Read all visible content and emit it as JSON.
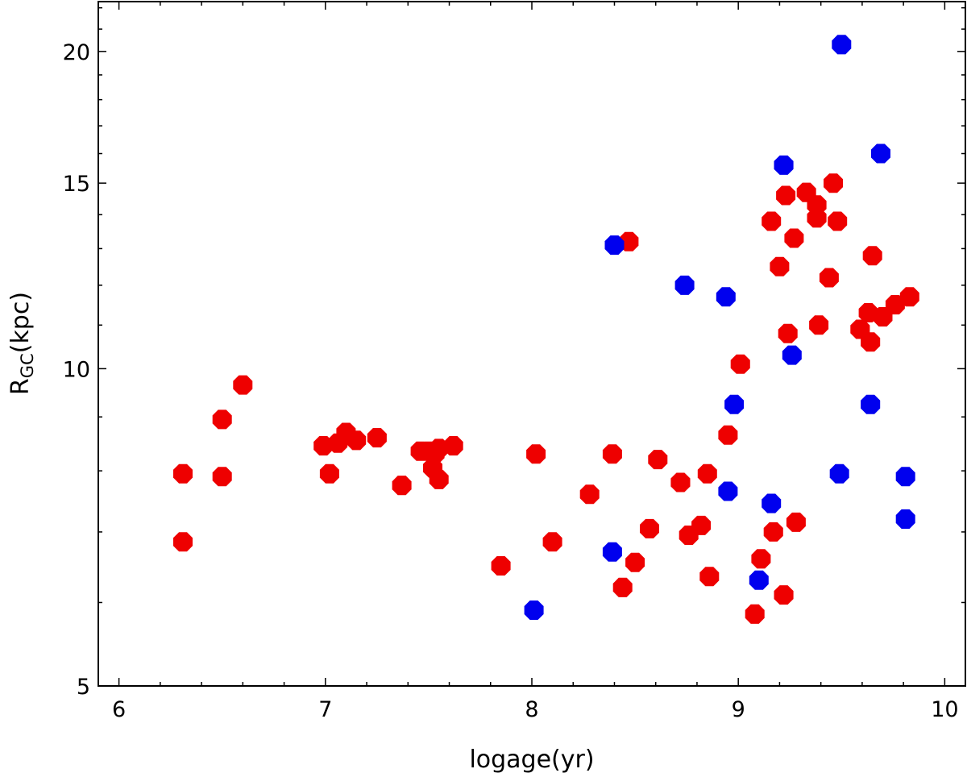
{
  "chart_data": {
    "type": "scatter",
    "xlabel": "logage(yr)",
    "ylabel": "R",
    "ylabel_subscript": "GC",
    "ylabel_suffix": "(kpc)",
    "xlim": [
      5.9,
      10.1
    ],
    "ylim": [
      5,
      22.3
    ],
    "yscale": "log",
    "grid": false,
    "xticks": [
      6,
      7,
      8,
      9,
      10
    ],
    "xtick_labels": [
      "6",
      "7",
      "8",
      "9",
      "10"
    ],
    "yticks": [
      5,
      10,
      15,
      20
    ],
    "ytick_labels": [
      "5",
      "10",
      "15",
      "20"
    ],
    "series": [
      {
        "name": "red",
        "color": "#ee0000",
        "points": [
          [
            6.31,
            7.95
          ],
          [
            6.31,
            6.85
          ],
          [
            6.5,
            7.9
          ],
          [
            6.5,
            8.95
          ],
          [
            6.6,
            9.65
          ],
          [
            6.99,
            8.45
          ],
          [
            7.02,
            7.95
          ],
          [
            7.06,
            8.5
          ],
          [
            7.1,
            8.7
          ],
          [
            7.15,
            8.55
          ],
          [
            7.25,
            8.6
          ],
          [
            7.37,
            7.75
          ],
          [
            7.46,
            8.35
          ],
          [
            7.5,
            8.35
          ],
          [
            7.53,
            8.3
          ],
          [
            7.55,
            8.4
          ],
          [
            7.52,
            8.05
          ],
          [
            7.55,
            7.85
          ],
          [
            7.62,
            8.45
          ],
          [
            7.85,
            6.5
          ],
          [
            8.02,
            8.3
          ],
          [
            8.1,
            6.85
          ],
          [
            8.28,
            7.6
          ],
          [
            8.39,
            8.3
          ],
          [
            8.44,
            6.2
          ],
          [
            8.47,
            13.2
          ],
          [
            8.5,
            6.55
          ],
          [
            8.57,
            7.05
          ],
          [
            8.61,
            8.2
          ],
          [
            8.72,
            7.8
          ],
          [
            8.76,
            6.95
          ],
          [
            8.82,
            7.1
          ],
          [
            8.85,
            7.95
          ],
          [
            8.86,
            6.35
          ],
          [
            8.95,
            8.65
          ],
          [
            9.01,
            10.1
          ],
          [
            9.08,
            5.85
          ],
          [
            9.11,
            6.6
          ],
          [
            9.16,
            13.8
          ],
          [
            9.17,
            7.0
          ],
          [
            9.2,
            12.5
          ],
          [
            9.22,
            6.1
          ],
          [
            9.23,
            14.6
          ],
          [
            9.24,
            10.8
          ],
          [
            9.27,
            13.3
          ],
          [
            9.28,
            7.15
          ],
          [
            9.33,
            14.7
          ],
          [
            9.38,
            14.3
          ],
          [
            9.38,
            13.9
          ],
          [
            9.39,
            11.0
          ],
          [
            9.44,
            12.2
          ],
          [
            9.46,
            15.0
          ],
          [
            9.48,
            13.8
          ],
          [
            9.59,
            10.9
          ],
          [
            9.63,
            11.3
          ],
          [
            9.64,
            10.6
          ],
          [
            9.65,
            12.8
          ],
          [
            9.7,
            11.2
          ],
          [
            9.76,
            11.5
          ],
          [
            9.83,
            11.7
          ]
        ]
      },
      {
        "name": "blue",
        "color": "#0000ee",
        "points": [
          [
            8.01,
            5.9
          ],
          [
            8.39,
            6.7
          ],
          [
            8.4,
            13.1
          ],
          [
            8.74,
            12.0
          ],
          [
            8.94,
            11.7
          ],
          [
            8.95,
            7.65
          ],
          [
            8.98,
            9.25
          ],
          [
            9.1,
            6.3
          ],
          [
            9.16,
            7.45
          ],
          [
            9.22,
            15.6
          ],
          [
            9.26,
            10.3
          ],
          [
            9.49,
            7.95
          ],
          [
            9.5,
            20.3
          ],
          [
            9.64,
            9.25
          ],
          [
            9.69,
            16.0
          ],
          [
            9.81,
            7.9
          ],
          [
            9.81,
            7.2
          ]
        ]
      }
    ]
  }
}
